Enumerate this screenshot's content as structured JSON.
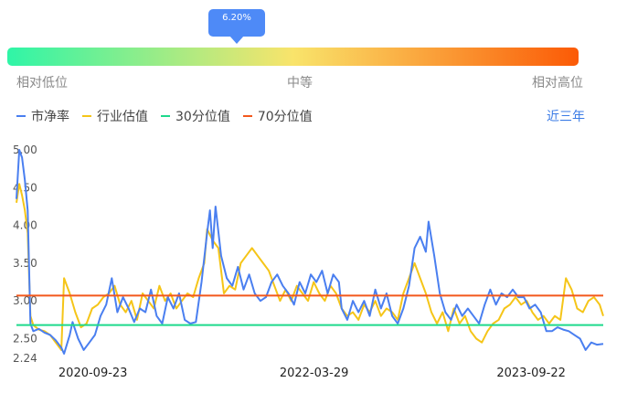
{
  "indicator": {
    "value_label": "6.20%",
    "percentile": 0.062
  },
  "gauge": {
    "labels": {
      "low": "相对低位",
      "mid": "中等",
      "high": "相对高位"
    },
    "colors": [
      "#2ff5a7",
      "#f9e46b",
      "#fb5a06"
    ]
  },
  "legend": [
    {
      "name": "市净率",
      "color": "#4a7ff0"
    },
    {
      "name": "行业估值",
      "color": "#f5c518"
    },
    {
      "name": "30分位值",
      "color": "#1ed98c"
    },
    {
      "name": "70分位值",
      "color": "#f3581c"
    }
  ],
  "range_selector": {
    "label": "近三年"
  },
  "chart_data": {
    "type": "line",
    "x_range": [
      "2020-03-16",
      "2024-03-20"
    ],
    "ylim": [
      2.24,
      5.0
    ],
    "y_ticks": [
      2.24,
      2.5,
      3.0,
      3.5,
      4.0,
      4.5,
      5.0
    ],
    "y_tick_labels": [
      "2.24",
      "2.50",
      "3.00",
      "3.50",
      "4.00",
      "4.50",
      "5.00"
    ],
    "x_tick_labels": [
      "2020-09-23",
      "2022-03-29",
      "2023-09-22"
    ],
    "series": [
      {
        "name": "市净率",
        "color": "#4a7ff0",
        "points": [
          [
            "2020-03-16",
            4.35
          ],
          [
            "2020-03-23",
            5.0
          ],
          [
            "2020-03-30",
            4.9
          ],
          [
            "2020-04-06",
            4.6
          ],
          [
            "2020-04-13",
            4.2
          ],
          [
            "2020-04-20",
            2.7
          ],
          [
            "2020-04-27",
            2.6
          ],
          [
            "2020-05-11",
            2.63
          ],
          [
            "2020-05-25",
            2.58
          ],
          [
            "2020-06-08",
            2.55
          ],
          [
            "2020-06-22",
            2.48
          ],
          [
            "2020-07-06",
            2.38
          ],
          [
            "2020-07-13",
            2.3
          ],
          [
            "2020-07-27",
            2.55
          ],
          [
            "2020-08-03",
            2.72
          ],
          [
            "2020-08-17",
            2.5
          ],
          [
            "2020-08-31",
            2.35
          ],
          [
            "2020-09-14",
            2.45
          ],
          [
            "2020-09-28",
            2.55
          ],
          [
            "2020-10-12",
            2.8
          ],
          [
            "2020-10-26",
            2.95
          ],
          [
            "2020-11-09",
            3.3
          ],
          [
            "2020-11-23",
            2.85
          ],
          [
            "2020-12-07",
            3.05
          ],
          [
            "2020-12-21",
            2.9
          ],
          [
            "2021-01-04",
            2.72
          ],
          [
            "2021-01-18",
            2.9
          ],
          [
            "2021-02-01",
            2.85
          ],
          [
            "2021-02-15",
            3.15
          ],
          [
            "2021-03-01",
            2.8
          ],
          [
            "2021-03-15",
            2.7
          ],
          [
            "2021-03-29",
            3.05
          ],
          [
            "2021-04-12",
            2.9
          ],
          [
            "2021-04-26",
            3.1
          ],
          [
            "2021-05-10",
            2.75
          ],
          [
            "2021-05-24",
            2.7
          ],
          [
            "2021-06-07",
            2.72
          ],
          [
            "2021-06-21",
            3.25
          ],
          [
            "2021-07-05",
            3.9
          ],
          [
            "2021-07-12",
            4.2
          ],
          [
            "2021-07-19",
            3.7
          ],
          [
            "2021-07-26",
            4.25
          ],
          [
            "2021-08-09",
            3.6
          ],
          [
            "2021-08-23",
            3.3
          ],
          [
            "2021-09-06",
            3.2
          ],
          [
            "2021-09-20",
            3.45
          ],
          [
            "2021-10-04",
            3.15
          ],
          [
            "2021-10-18",
            3.35
          ],
          [
            "2021-11-01",
            3.1
          ],
          [
            "2021-11-15",
            3.0
          ],
          [
            "2021-11-29",
            3.05
          ],
          [
            "2021-12-13",
            3.25
          ],
          [
            "2021-12-27",
            3.35
          ],
          [
            "2022-01-10",
            3.2
          ],
          [
            "2022-01-24",
            3.1
          ],
          [
            "2022-02-07",
            2.95
          ],
          [
            "2022-02-21",
            3.25
          ],
          [
            "2022-03-07",
            3.1
          ],
          [
            "2022-03-21",
            3.35
          ],
          [
            "2022-04-04",
            3.25
          ],
          [
            "2022-04-18",
            3.4
          ],
          [
            "2022-05-02",
            3.1
          ],
          [
            "2022-05-16",
            3.35
          ],
          [
            "2022-05-30",
            3.25
          ],
          [
            "2022-06-06",
            2.9
          ],
          [
            "2022-06-20",
            2.75
          ],
          [
            "2022-07-04",
            3.0
          ],
          [
            "2022-07-18",
            2.85
          ],
          [
            "2022-08-01",
            3.0
          ],
          [
            "2022-08-15",
            2.8
          ],
          [
            "2022-08-29",
            3.15
          ],
          [
            "2022-09-12",
            2.9
          ],
          [
            "2022-09-26",
            3.1
          ],
          [
            "2022-10-10",
            2.8
          ],
          [
            "2022-10-24",
            2.7
          ],
          [
            "2022-11-07",
            2.9
          ],
          [
            "2022-11-21",
            3.2
          ],
          [
            "2022-12-05",
            3.7
          ],
          [
            "2022-12-19",
            3.85
          ],
          [
            "2023-01-02",
            3.65
          ],
          [
            "2023-01-09",
            4.05
          ],
          [
            "2023-01-23",
            3.6
          ],
          [
            "2023-02-06",
            3.1
          ],
          [
            "2023-02-20",
            2.85
          ],
          [
            "2023-03-06",
            2.75
          ],
          [
            "2023-03-20",
            2.95
          ],
          [
            "2023-04-03",
            2.8
          ],
          [
            "2023-04-17",
            2.9
          ],
          [
            "2023-05-01",
            2.8
          ],
          [
            "2023-05-15",
            2.7
          ],
          [
            "2023-05-29",
            2.95
          ],
          [
            "2023-06-12",
            3.15
          ],
          [
            "2023-06-26",
            2.95
          ],
          [
            "2023-07-10",
            3.1
          ],
          [
            "2023-07-24",
            3.05
          ],
          [
            "2023-08-07",
            3.15
          ],
          [
            "2023-08-21",
            3.05
          ],
          [
            "2023-09-04",
            3.05
          ],
          [
            "2023-09-18",
            2.9
          ],
          [
            "2023-10-02",
            2.95
          ],
          [
            "2023-10-16",
            2.85
          ],
          [
            "2023-10-30",
            2.6
          ],
          [
            "2023-11-13",
            2.6
          ],
          [
            "2023-11-27",
            2.65
          ],
          [
            "2023-12-11",
            2.62
          ],
          [
            "2023-12-25",
            2.6
          ],
          [
            "2024-01-08",
            2.55
          ],
          [
            "2024-01-22",
            2.5
          ],
          [
            "2024-02-05",
            2.35
          ],
          [
            "2024-02-19",
            2.45
          ],
          [
            "2024-03-04",
            2.42
          ],
          [
            "2024-03-20",
            2.43
          ]
        ]
      },
      {
        "name": "行业估值",
        "color": "#f5c518",
        "points": [
          [
            "2020-03-16",
            4.3
          ],
          [
            "2020-03-23",
            4.55
          ],
          [
            "2020-03-30",
            4.4
          ],
          [
            "2020-04-06",
            4.2
          ],
          [
            "2020-04-13",
            3.9
          ],
          [
            "2020-04-20",
            2.8
          ],
          [
            "2020-04-27",
            2.68
          ],
          [
            "2020-05-11",
            2.62
          ],
          [
            "2020-05-25",
            2.6
          ],
          [
            "2020-06-08",
            2.55
          ],
          [
            "2020-06-22",
            2.45
          ],
          [
            "2020-07-06",
            2.35
          ],
          [
            "2020-07-13",
            3.3
          ],
          [
            "2020-07-27",
            3.1
          ],
          [
            "2020-08-10",
            2.85
          ],
          [
            "2020-08-24",
            2.65
          ],
          [
            "2020-09-07",
            2.7
          ],
          [
            "2020-09-21",
            2.9
          ],
          [
            "2020-10-05",
            2.95
          ],
          [
            "2020-10-19",
            3.05
          ],
          [
            "2020-11-02",
            3.1
          ],
          [
            "2020-11-16",
            3.2
          ],
          [
            "2020-11-30",
            2.95
          ],
          [
            "2020-12-14",
            2.85
          ],
          [
            "2020-12-28",
            3.0
          ],
          [
            "2021-01-11",
            2.75
          ],
          [
            "2021-01-25",
            3.1
          ],
          [
            "2021-02-08",
            3.0
          ],
          [
            "2021-02-22",
            2.9
          ],
          [
            "2021-03-08",
            3.2
          ],
          [
            "2021-03-22",
            3.0
          ],
          [
            "2021-04-05",
            3.1
          ],
          [
            "2021-04-19",
            2.9
          ],
          [
            "2021-05-03",
            3.0
          ],
          [
            "2021-05-17",
            3.1
          ],
          [
            "2021-05-31",
            3.05
          ],
          [
            "2021-06-14",
            3.3
          ],
          [
            "2021-06-28",
            3.5
          ],
          [
            "2021-07-05",
            3.95
          ],
          [
            "2021-07-19",
            3.8
          ],
          [
            "2021-08-02",
            3.7
          ],
          [
            "2021-08-16",
            3.1
          ],
          [
            "2021-08-30",
            3.2
          ],
          [
            "2021-09-13",
            3.15
          ],
          [
            "2021-09-27",
            3.5
          ],
          [
            "2021-10-11",
            3.6
          ],
          [
            "2021-10-25",
            3.7
          ],
          [
            "2021-11-08",
            3.6
          ],
          [
            "2021-11-22",
            3.5
          ],
          [
            "2021-12-06",
            3.4
          ],
          [
            "2021-12-20",
            3.2
          ],
          [
            "2022-01-03",
            3.0
          ],
          [
            "2022-01-17",
            3.15
          ],
          [
            "2022-01-31",
            3.0
          ],
          [
            "2022-02-14",
            3.2
          ],
          [
            "2022-02-28",
            3.1
          ],
          [
            "2022-03-14",
            3.0
          ],
          [
            "2022-03-28",
            3.25
          ],
          [
            "2022-04-11",
            3.1
          ],
          [
            "2022-04-25",
            3.0
          ],
          [
            "2022-05-09",
            3.2
          ],
          [
            "2022-05-23",
            3.1
          ],
          [
            "2022-06-06",
            2.9
          ],
          [
            "2022-06-20",
            2.8
          ],
          [
            "2022-07-04",
            2.85
          ],
          [
            "2022-07-18",
            2.75
          ],
          [
            "2022-08-01",
            2.95
          ],
          [
            "2022-08-15",
            2.85
          ],
          [
            "2022-08-29",
            3.0
          ],
          [
            "2022-09-12",
            2.8
          ],
          [
            "2022-09-26",
            2.9
          ],
          [
            "2022-10-10",
            2.85
          ],
          [
            "2022-10-24",
            2.75
          ],
          [
            "2022-11-07",
            3.1
          ],
          [
            "2022-11-21",
            3.3
          ],
          [
            "2022-12-05",
            3.5
          ],
          [
            "2022-12-19",
            3.3
          ],
          [
            "2023-01-02",
            3.1
          ],
          [
            "2023-01-16",
            2.85
          ],
          [
            "2023-01-30",
            2.7
          ],
          [
            "2023-02-13",
            2.85
          ],
          [
            "2023-02-27",
            2.6
          ],
          [
            "2023-03-13",
            2.9
          ],
          [
            "2023-03-27",
            2.7
          ],
          [
            "2023-04-10",
            2.8
          ],
          [
            "2023-04-24",
            2.6
          ],
          [
            "2023-05-08",
            2.5
          ],
          [
            "2023-05-22",
            2.45
          ],
          [
            "2023-06-05",
            2.6
          ],
          [
            "2023-06-19",
            2.7
          ],
          [
            "2023-07-03",
            2.75
          ],
          [
            "2023-07-17",
            2.9
          ],
          [
            "2023-07-31",
            2.95
          ],
          [
            "2023-08-14",
            3.05
          ],
          [
            "2023-08-28",
            2.95
          ],
          [
            "2023-09-11",
            3.0
          ],
          [
            "2023-09-25",
            2.85
          ],
          [
            "2023-10-09",
            2.75
          ],
          [
            "2023-10-23",
            2.8
          ],
          [
            "2023-11-06",
            2.7
          ],
          [
            "2023-11-20",
            2.8
          ],
          [
            "2023-12-04",
            2.75
          ],
          [
            "2023-12-18",
            3.3
          ],
          [
            "2024-01-01",
            3.15
          ],
          [
            "2024-01-15",
            2.9
          ],
          [
            "2024-01-29",
            2.85
          ],
          [
            "2024-02-12",
            3.0
          ],
          [
            "2024-02-26",
            3.05
          ],
          [
            "2024-03-11",
            2.95
          ],
          [
            "2024-03-20",
            2.8
          ]
        ]
      },
      {
        "name": "30分位值",
        "color": "#1ed98c",
        "constant": 2.68
      },
      {
        "name": "70分位值",
        "color": "#f3581c",
        "constant": 3.07
      }
    ]
  }
}
